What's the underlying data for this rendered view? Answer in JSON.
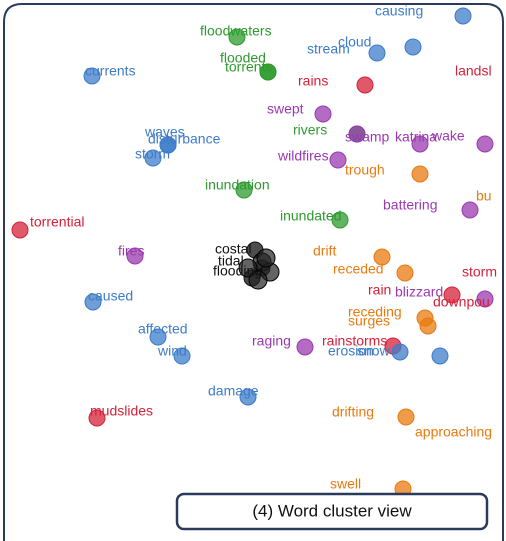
{
  "panel": {
    "caption": "(4) Word cluster view"
  },
  "words": [
    {
      "text": "causing",
      "color": "#3d7cc9"
    },
    {
      "text": "floodwaters",
      "color": "#2e9a2e"
    },
    {
      "text": "cloud",
      "color": "#3d7cc9"
    },
    {
      "text": "stream",
      "color": "#3d7cc9"
    },
    {
      "text": "flooded",
      "color": "#2e9a2e"
    },
    {
      "text": "torrents",
      "color": "#2e9a2e"
    },
    {
      "text": "currents",
      "color": "#3d7cc9"
    },
    {
      "text": "rains",
      "color": "#d4213a"
    },
    {
      "text": "landsl",
      "color": "#d4213a"
    },
    {
      "text": "swept",
      "color": "#9a3ab0"
    },
    {
      "text": "rivers",
      "color": "#2e9a2e"
    },
    {
      "text": "swamp",
      "color": "#9a3ab0"
    },
    {
      "text": "katrina",
      "color": "#9a3ab0"
    },
    {
      "text": "wake",
      "color": "#9a3ab0"
    },
    {
      "text": "waves",
      "color": "#3d7cc9"
    },
    {
      "text": "disturbance",
      "color": "#3d7cc9"
    },
    {
      "text": "storm",
      "color": "#3d7cc9"
    },
    {
      "text": "wildfires",
      "color": "#9a3ab0"
    },
    {
      "text": "trough",
      "color": "#e87a10"
    },
    {
      "text": "inundation",
      "color": "#2e9a2e"
    },
    {
      "text": "battering",
      "color": "#9a3ab0"
    },
    {
      "text": "bu",
      "color": "#e87a10"
    },
    {
      "text": "inundated",
      "color": "#2e9a2e"
    },
    {
      "text": "torrential",
      "color": "#d4213a"
    },
    {
      "text": "fires",
      "color": "#9a3ab0"
    },
    {
      "text": "costal",
      "color": "#111111"
    },
    {
      "text": "tidal",
      "color": "#111111"
    },
    {
      "text": "flooding",
      "color": "#111111"
    },
    {
      "text": "drift",
      "color": "#e87a10"
    },
    {
      "text": "receded",
      "color": "#e87a10"
    },
    {
      "text": "storm",
      "color": "#d4213a"
    },
    {
      "text": "rain",
      "color": "#d4213a"
    },
    {
      "text": "blizzard",
      "color": "#9a3ab0"
    },
    {
      "text": "downpou",
      "color": "#d4213a"
    },
    {
      "text": "caused",
      "color": "#3d7cc9"
    },
    {
      "text": "receding",
      "color": "#e87a10"
    },
    {
      "text": "surges",
      "color": "#e87a10"
    },
    {
      "text": "affected",
      "color": "#3d7cc9"
    },
    {
      "text": "raging",
      "color": "#9a3ab0"
    },
    {
      "text": "rainstorms",
      "color": "#d4213a"
    },
    {
      "text": "erosion",
      "color": "#3d7cc9"
    },
    {
      "text": "snow",
      "color": "#3d7cc9"
    },
    {
      "text": "wind",
      "color": "#3d7cc9"
    },
    {
      "text": "damage",
      "color": "#3d7cc9"
    },
    {
      "text": "mudslides",
      "color": "#d4213a"
    },
    {
      "text": "drifting",
      "color": "#e87a10"
    },
    {
      "text": "approaching",
      "color": "#e87a10"
    },
    {
      "text": "swell",
      "color": "#e87a10"
    }
  ]
}
